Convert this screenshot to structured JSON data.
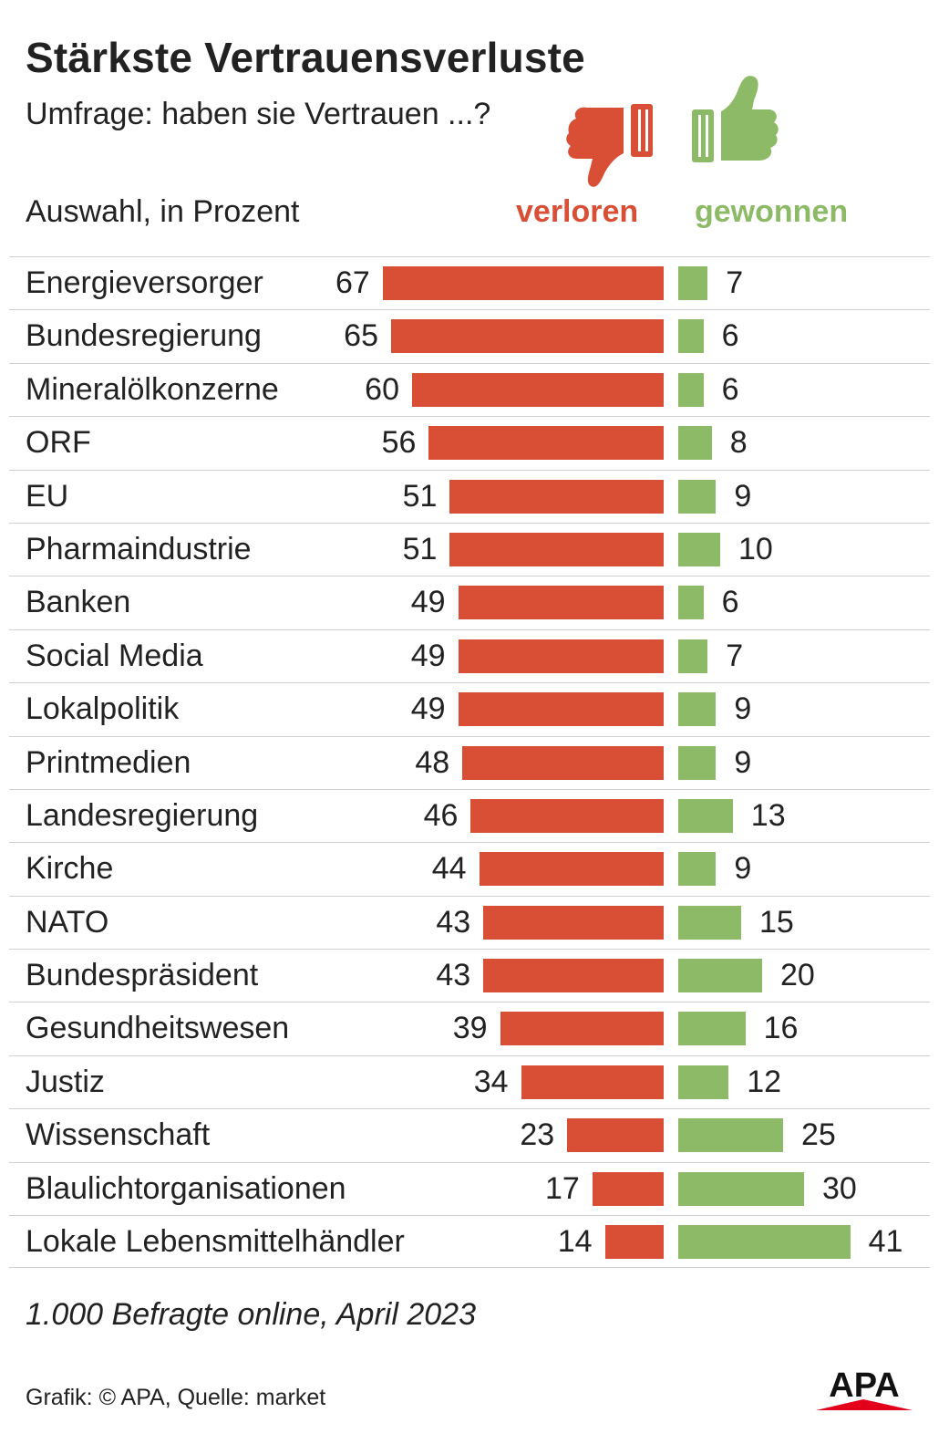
{
  "title": "Stärkste Vertrauensverluste",
  "subtitle": "Umfrage: haben sie Vertrauen ...?",
  "unit_note": "Auswahl, in Prozent",
  "legend": {
    "lost": "verloren",
    "won": "gewonnen"
  },
  "colors": {
    "lost": "#d94f36",
    "won": "#8dba66",
    "text": "#222222",
    "logo_red": "#e2001a"
  },
  "icons": {
    "lost": "thumbs-down-icon",
    "won": "thumbs-up-icon"
  },
  "footnote": "1.000 Befragte online, April 2023",
  "source": "Grafik: © APA, Quelle: market",
  "logo_text": "APA",
  "chart_data": {
    "type": "bar",
    "orientation": "horizontal-diverging",
    "categories": [
      "Energieversorger",
      "Bundesregierung",
      "Mineralölkonzerne",
      "ORF",
      "EU",
      "Pharmaindustrie",
      "Banken",
      "Social Media",
      "Lokalpolitik",
      "Printmedien",
      "Landesregierung",
      "Kirche",
      "NATO",
      "Bundespräsident",
      "Gesundheitswesen",
      "Justiz",
      "Wissenschaft",
      "Blaulichtorganisationen",
      "Lokale Lebensmittelhändler"
    ],
    "series": [
      {
        "name": "verloren",
        "values": [
          67,
          65,
          60,
          56,
          51,
          51,
          49,
          49,
          49,
          48,
          46,
          44,
          43,
          43,
          39,
          34,
          23,
          17,
          14
        ]
      },
      {
        "name": "gewonnen",
        "values": [
          7,
          6,
          6,
          8,
          9,
          10,
          6,
          7,
          9,
          9,
          13,
          9,
          15,
          20,
          16,
          12,
          25,
          30,
          41
        ]
      }
    ],
    "title": "Stärkste Vertrauensverluste",
    "ylabel": "Auswahl, in Prozent",
    "grid": false,
    "legend_position": "top-right"
  }
}
